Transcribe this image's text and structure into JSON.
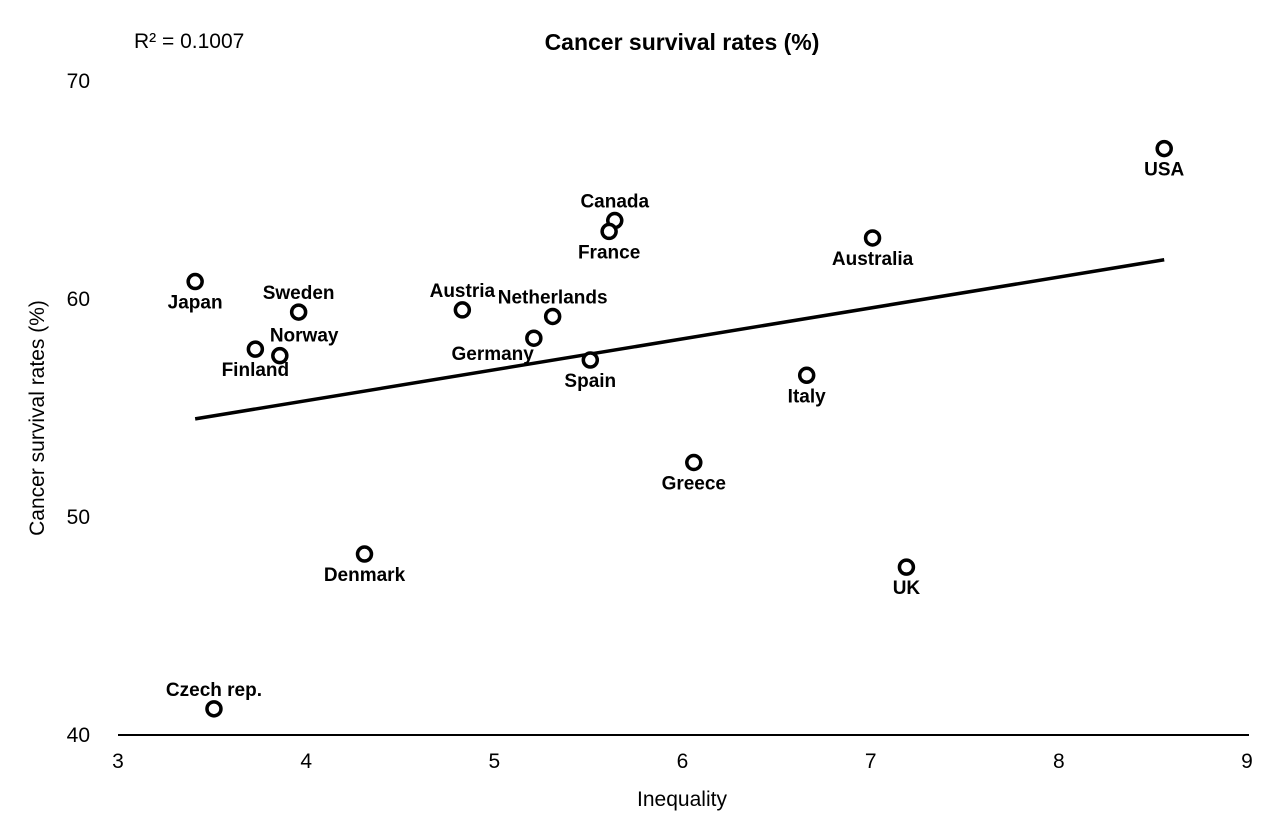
{
  "chart_data": {
    "type": "scatter",
    "title": "Cancer survival rates (%)",
    "annotation": "R² = 0.1007",
    "xlabel": "Inequality",
    "ylabel": "Cancer survival rates (%)",
    "xlim": [
      3,
      9
    ],
    "ylim": [
      40,
      70
    ],
    "xticks": [
      "3",
      "4",
      "5",
      "6",
      "7",
      "8",
      "9"
    ],
    "yticks": [
      "40",
      "50",
      "60",
      "70"
    ],
    "grid": false,
    "points": [
      {
        "label": "USA",
        "x": 8.56,
        "y": 66.9,
        "label_pos": "below"
      },
      {
        "label": "Canada",
        "x": 5.64,
        "y": 63.6,
        "label_pos": "above"
      },
      {
        "label": "France",
        "x": 5.61,
        "y": 63.1,
        "label_pos": "below"
      },
      {
        "label": "Australia",
        "x": 7.01,
        "y": 62.8,
        "label_pos": "below"
      },
      {
        "label": "Japan",
        "x": 3.41,
        "y": 60.8,
        "label_pos": "below"
      },
      {
        "label": "Austria",
        "x": 4.83,
        "y": 59.5,
        "label_pos": "above"
      },
      {
        "label": "Sweden",
        "x": 3.96,
        "y": 59.4,
        "label_pos": "above"
      },
      {
        "label": "Netherlands",
        "x": 5.31,
        "y": 59.2,
        "label_pos": "above"
      },
      {
        "label": "Germany",
        "x": 5.21,
        "y": 58.2,
        "label_pos": "below-left"
      },
      {
        "label": "Finland",
        "x": 3.73,
        "y": 57.7,
        "label_pos": "below"
      },
      {
        "label": "Norway",
        "x": 3.86,
        "y": 57.4,
        "label_pos": "above-right"
      },
      {
        "label": "Spain",
        "x": 5.51,
        "y": 57.2,
        "label_pos": "below"
      },
      {
        "label": "Italy",
        "x": 6.66,
        "y": 56.5,
        "label_pos": "below"
      },
      {
        "label": "Greece",
        "x": 6.06,
        "y": 52.5,
        "label_pos": "below"
      },
      {
        "label": "Denmark",
        "x": 4.31,
        "y": 48.3,
        "label_pos": "below"
      },
      {
        "label": "UK",
        "x": 7.19,
        "y": 47.7,
        "label_pos": "below"
      },
      {
        "label": "Czech rep.",
        "x": 3.51,
        "y": 41.2,
        "label_pos": "above"
      }
    ],
    "trendline": {
      "x": [
        3.41,
        8.56
      ],
      "y": [
        54.5,
        61.8
      ]
    }
  }
}
